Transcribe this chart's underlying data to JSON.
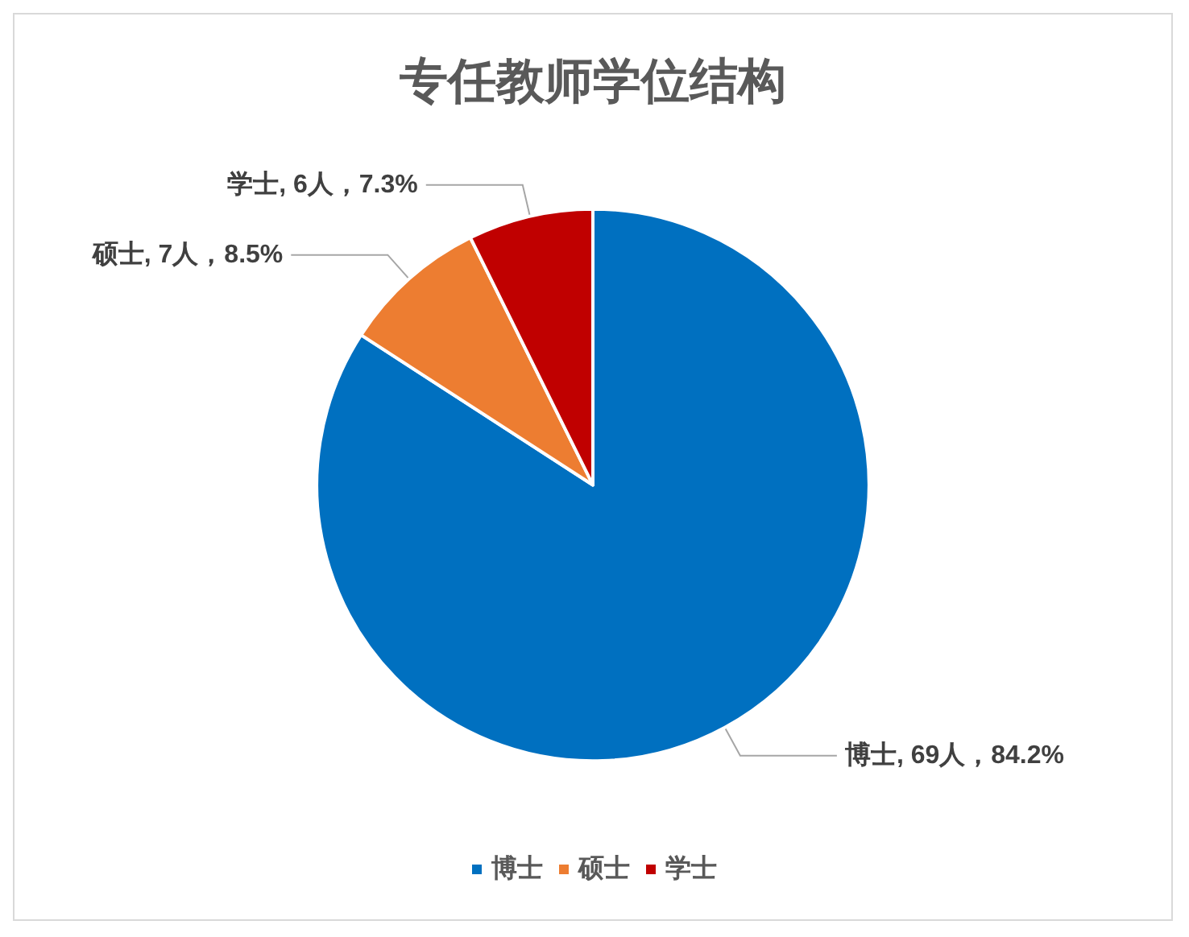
{
  "chart_data": {
    "type": "pie",
    "title": "专任教师学位结构",
    "categories": [
      "博士",
      "硕士",
      "学士"
    ],
    "values": [
      69,
      7,
      6
    ],
    "colors": [
      "#0070c0",
      "#ed7d31",
      "#c00000"
    ],
    "value_labels": [
      "博士, 69人，84.2%",
      "硕士, 7人，8.5%",
      "学士, 6人，7.3%"
    ],
    "legend": "bottom"
  }
}
